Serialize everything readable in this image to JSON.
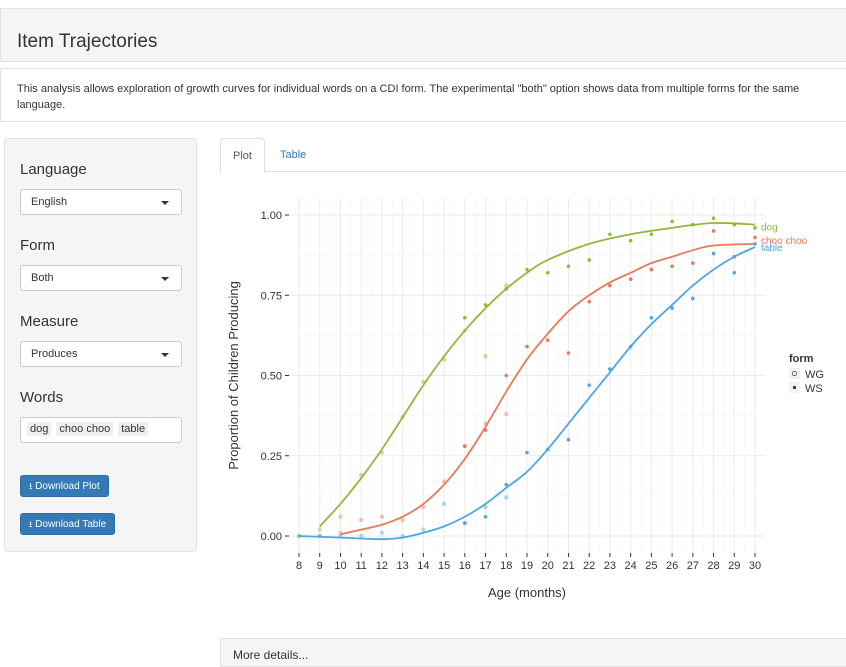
{
  "header": {
    "title": "Item Trajectories"
  },
  "description": "This analysis allows exploration of growth curves for individual words on a CDI form. The experimental \"both\" option shows data from multiple forms for the same language.",
  "sidebar": {
    "language_label": "Language",
    "language_value": "English",
    "form_label": "Form",
    "form_value": "Both",
    "measure_label": "Measure",
    "measure_value": "Produces",
    "words_label": "Words",
    "words": [
      "dog",
      "choo choo",
      "table"
    ],
    "download_plot": "Download Plot",
    "download_table": "Download Table"
  },
  "tabs": [
    {
      "label": "Plot",
      "active": true
    },
    {
      "label": "Table",
      "active": false
    }
  ],
  "details_label": "More details...",
  "chart_data": {
    "type": "scatter",
    "xlabel": "Age (months)",
    "ylabel": "Proportion of Children Producing",
    "xlim": [
      8,
      30
    ],
    "ylim": [
      0,
      1
    ],
    "x_ticks": [
      8,
      9,
      10,
      11,
      12,
      13,
      14,
      15,
      16,
      17,
      18,
      19,
      20,
      21,
      22,
      23,
      24,
      25,
      26,
      27,
      28,
      29,
      30
    ],
    "y_ticks": [
      "0.00",
      "0.25",
      "0.50",
      "0.75",
      "1.00"
    ],
    "grid": true,
    "legend": {
      "title": "form",
      "entries": [
        "WG",
        "WS"
      ],
      "position": "right"
    },
    "series": [
      {
        "name": "dog",
        "color": "#8fba38",
        "WG": [
          [
            8,
            0.0
          ],
          [
            9,
            0.02
          ],
          [
            10,
            0.06
          ],
          [
            11,
            0.19
          ],
          [
            12,
            0.26
          ],
          [
            13,
            0.37
          ],
          [
            14,
            0.48
          ],
          [
            15,
            0.55
          ],
          [
            16,
            0.64
          ],
          [
            17,
            0.56
          ],
          [
            18,
            0.78
          ]
        ],
        "WS": [
          [
            16,
            0.68
          ],
          [
            17,
            0.72
          ],
          [
            18,
            0.77
          ],
          [
            19,
            0.83
          ],
          [
            20,
            0.82
          ],
          [
            21,
            0.84
          ],
          [
            22,
            0.86
          ],
          [
            23,
            0.94
          ],
          [
            24,
            0.92
          ],
          [
            25,
            0.94
          ],
          [
            26,
            0.98
          ],
          [
            27,
            0.97
          ],
          [
            28,
            0.99
          ],
          [
            29,
            0.97
          ],
          [
            30,
            0.96
          ]
        ],
        "curve": [
          [
            9,
            0.03
          ],
          [
            10,
            0.1
          ],
          [
            11,
            0.18
          ],
          [
            12,
            0.27
          ],
          [
            13,
            0.37
          ],
          [
            14,
            0.47
          ],
          [
            15,
            0.56
          ],
          [
            16,
            0.64
          ],
          [
            17,
            0.71
          ],
          [
            18,
            0.77
          ],
          [
            19,
            0.82
          ],
          [
            20,
            0.86
          ],
          [
            22,
            0.91
          ],
          [
            24,
            0.94
          ],
          [
            26,
            0.96
          ],
          [
            28,
            0.975
          ],
          [
            30,
            0.97
          ]
        ]
      },
      {
        "name": "choo choo",
        "color": "#e8795a",
        "WG": [
          [
            9,
            0.0
          ],
          [
            10,
            0.01
          ],
          [
            11,
            0.05
          ],
          [
            12,
            0.06
          ],
          [
            13,
            0.05
          ],
          [
            14,
            0.09
          ],
          [
            15,
            0.17
          ],
          [
            16,
            0.28
          ],
          [
            17,
            0.35
          ],
          [
            18,
            0.38
          ]
        ],
        "WS": [
          [
            16,
            0.28
          ],
          [
            17,
            0.33
          ],
          [
            18,
            0.5
          ],
          [
            19,
            0.59
          ],
          [
            20,
            0.61
          ],
          [
            21,
            0.57
          ],
          [
            22,
            0.73
          ],
          [
            23,
            0.78
          ],
          [
            24,
            0.8
          ],
          [
            25,
            0.83
          ],
          [
            26,
            0.84
          ],
          [
            27,
            0.85
          ],
          [
            28,
            0.95
          ],
          [
            29,
            0.87
          ],
          [
            30,
            0.93
          ]
        ],
        "curve": [
          [
            10,
            0.005
          ],
          [
            11,
            0.02
          ],
          [
            12,
            0.035
          ],
          [
            13,
            0.06
          ],
          [
            14,
            0.1
          ],
          [
            15,
            0.16
          ],
          [
            16,
            0.24
          ],
          [
            17,
            0.34
          ],
          [
            18,
            0.45
          ],
          [
            19,
            0.55
          ],
          [
            20,
            0.63
          ],
          [
            21,
            0.7
          ],
          [
            22,
            0.75
          ],
          [
            23,
            0.79
          ],
          [
            24,
            0.82
          ],
          [
            25,
            0.85
          ],
          [
            26,
            0.87
          ],
          [
            27,
            0.89
          ],
          [
            28,
            0.905
          ],
          [
            30,
            0.91
          ]
        ]
      },
      {
        "name": "table",
        "color": "#4da6e0",
        "WG": [
          [
            8,
            0.0
          ],
          [
            9,
            0.0
          ],
          [
            10,
            0.0
          ],
          [
            11,
            0.0
          ],
          [
            12,
            0.01
          ],
          [
            13,
            0.0
          ],
          [
            14,
            0.02
          ],
          [
            15,
            0.1
          ],
          [
            16,
            0.04
          ],
          [
            17,
            0.09
          ],
          [
            18,
            0.12
          ]
        ],
        "WS": [
          [
            16,
            0.04
          ],
          [
            17,
            0.06
          ],
          [
            18,
            0.16
          ],
          [
            19,
            0.26
          ],
          [
            20,
            0.27
          ],
          [
            21,
            0.3
          ],
          [
            22,
            0.47
          ],
          [
            23,
            0.52
          ],
          [
            24,
            0.59
          ],
          [
            25,
            0.68
          ],
          [
            26,
            0.71
          ],
          [
            27,
            0.74
          ],
          [
            28,
            0.88
          ],
          [
            29,
            0.82
          ],
          [
            30,
            0.91
          ]
        ],
        "curve": [
          [
            8,
            0.0
          ],
          [
            10,
            -0.005
          ],
          [
            12,
            -0.01
          ],
          [
            13,
            -0.005
          ],
          [
            14,
            0.01
          ],
          [
            15,
            0.03
          ],
          [
            16,
            0.06
          ],
          [
            17,
            0.1
          ],
          [
            18,
            0.15
          ],
          [
            19,
            0.2
          ],
          [
            20,
            0.27
          ],
          [
            21,
            0.35
          ],
          [
            22,
            0.43
          ],
          [
            23,
            0.51
          ],
          [
            24,
            0.59
          ],
          [
            25,
            0.66
          ],
          [
            26,
            0.72
          ],
          [
            27,
            0.78
          ],
          [
            28,
            0.83
          ],
          [
            29,
            0.87
          ],
          [
            30,
            0.9
          ]
        ]
      }
    ]
  }
}
